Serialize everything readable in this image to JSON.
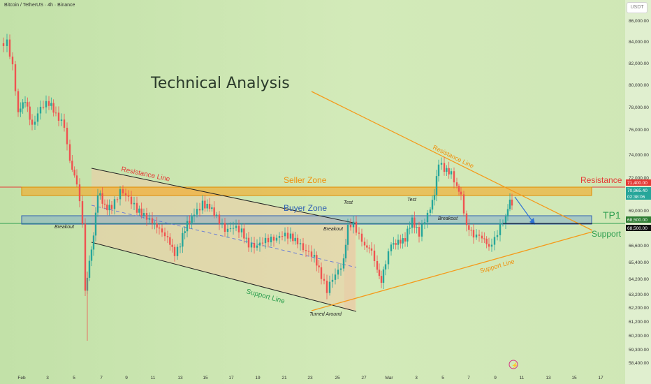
{
  "header": {
    "symbol_label": "Bitcoin / TetherUS · 4h · Binance",
    "currency": "USDT"
  },
  "chart_data": {
    "type": "candlestick",
    "title": "Technical Analysis",
    "y_axis": {
      "ticks": [
        "86,000.00",
        "84,000.00",
        "82,000.00",
        "80,000.00",
        "78,000.00",
        "76,000.00",
        "74,000.00",
        "72,000.00",
        "69,000.00",
        "66,600.00",
        "65,400.00",
        "64,200.00",
        "63,200.00",
        "62,200.00",
        "61,200.00",
        "60,200.00",
        "59,300.00",
        "58,400.00"
      ],
      "tick_values": [
        86000,
        84000,
        82000,
        80000,
        78000,
        76000,
        74000,
        72000,
        69000,
        66600,
        65400,
        64200,
        63200,
        62200,
        61200,
        60200,
        59300,
        58400
      ]
    },
    "x_axis": {
      "ticks": [
        "Feb",
        "3",
        "5",
        "7",
        "9",
        "11",
        "13",
        "15",
        "17",
        "19",
        "21",
        "23",
        "25",
        "27",
        "Mar",
        "3",
        "5",
        "7",
        "9",
        "11",
        "13",
        "15",
        "17"
      ]
    },
    "price_labels": [
      {
        "text": "71,400.00",
        "color": "#e53935"
      },
      {
        "text": "70,965.40",
        "color": "#26a69a"
      },
      {
        "text": "02:38:06",
        "color": "#26a69a"
      },
      {
        "text": "68,500.00",
        "color": "#2e7d32"
      },
      {
        "text": "68,500.00",
        "color": "#111111"
      }
    ],
    "annotations": {
      "seller_zone": "Seller Zone",
      "buyer_zone": "Buyer Zone",
      "resistance": "Resistance",
      "support": "Support",
      "tp1": "TP1",
      "channel_resistance": "Resistance Line",
      "channel_support": "Support Line",
      "tri_resistance": "Resistance Line",
      "tri_support": "Support Line",
      "breakout_1": "Breakout",
      "breakout_2": "Breakout",
      "breakout_3": "Breakout",
      "test_1": "Test",
      "test_2": "Test",
      "turned_around": "Turned Around"
    },
    "levels": {
      "resistance": 71400,
      "support": 68500,
      "seller_zone": [
        70700,
        71500
      ],
      "buyer_zone": [
        68700,
        69600
      ]
    },
    "colors": {
      "up": "#26a69a",
      "down": "#ef5350",
      "seller_zone": "#f5a623",
      "buyer_zone": "#5b8fd6",
      "channel_fill": "#f3c9a4",
      "trend_orange": "#f59a1a",
      "resistance_red": "#e53935",
      "support_green": "#2e9e4f"
    }
  }
}
